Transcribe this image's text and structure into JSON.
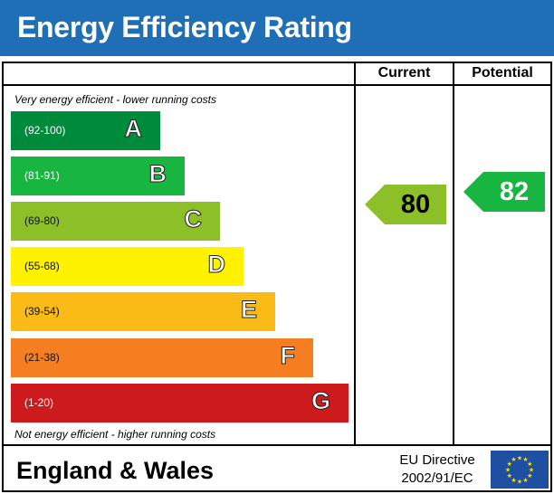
{
  "title": "Energy Efficiency Rating",
  "columns": {
    "current": "Current",
    "potential": "Potential"
  },
  "notes": {
    "top": "Very energy efficient - lower running costs",
    "bottom": "Not energy efficient - higher running costs"
  },
  "chart_data": {
    "type": "bar",
    "bands": [
      {
        "letter": "A",
        "range": "(92-100)",
        "color": "#008a3b"
      },
      {
        "letter": "B",
        "range": "(81-91)",
        "color": "#19b541"
      },
      {
        "letter": "C",
        "range": "(69-80)",
        "color": "#8dc028"
      },
      {
        "letter": "D",
        "range": "(55-68)",
        "color": "#fff200"
      },
      {
        "letter": "E",
        "range": "(39-54)",
        "color": "#fbbb16"
      },
      {
        "letter": "F",
        "range": "(21-38)",
        "color": "#f57f20"
      },
      {
        "letter": "G",
        "range": "(1-20)",
        "color": "#cd1a1c"
      }
    ],
    "current": {
      "value": 80,
      "band": "C",
      "color": "#8dc028"
    },
    "potential": {
      "value": 82,
      "band": "B",
      "color": "#19b541"
    }
  },
  "footer": {
    "region": "England & Wales",
    "directive_line1": "EU Directive",
    "directive_line2": "2002/91/EC"
  }
}
